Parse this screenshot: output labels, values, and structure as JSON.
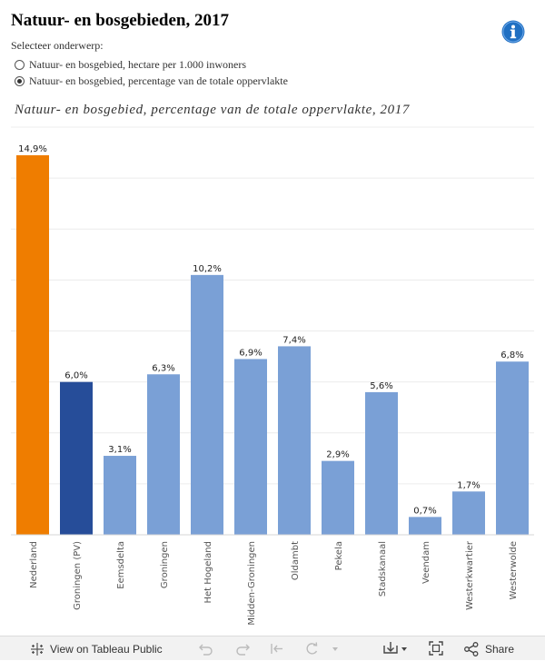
{
  "header": {
    "title": "Natuur- en bosgebieden, 2017",
    "info_icon": "info-icon"
  },
  "selector": {
    "label": "Selecteer onderwerp:",
    "options": [
      {
        "label": "Natuur- en bosgebied, hectare per 1.000 inwoners",
        "selected": false
      },
      {
        "label": "Natuur- en bosgebied, percentage van de totale oppervlakte",
        "selected": true
      }
    ]
  },
  "chart_data": {
    "type": "bar",
    "title": "Natuur- en bosgebied, percentage van de totale oppervlakte, 2017",
    "xlabel": "",
    "ylabel": "",
    "ylim": [
      0,
      16
    ],
    "grid": true,
    "categories": [
      "Nederland",
      "Groningen (PV)",
      "Eemsdelta",
      "Groningen",
      "Het Hogeland",
      "Midden-Groningen",
      "Oldambt",
      "Pekela",
      "Stadskanaal",
      "Veendam",
      "Westerkwartier",
      "Westerwolde"
    ],
    "values": [
      14.9,
      6.0,
      3.1,
      6.3,
      10.2,
      6.9,
      7.4,
      2.9,
      5.6,
      0.7,
      1.7,
      6.8
    ],
    "data_labels": [
      "14,9%",
      "6,0%",
      "3,1%",
      "6,3%",
      "10,2%",
      "6,9%",
      "7,4%",
      "2,9%",
      "5,6%",
      "0,7%",
      "1,7%",
      "6,8%"
    ],
    "bar_colors": [
      "#ef7d00",
      "#264d99",
      "#7aa0d6",
      "#7aa0d6",
      "#7aa0d6",
      "#7aa0d6",
      "#7aa0d6",
      "#7aa0d6",
      "#7aa0d6",
      "#7aa0d6",
      "#7aa0d6",
      "#7aa0d6"
    ]
  },
  "colors": {
    "highlight_orange": "#ef7d00",
    "province_blue": "#264d99",
    "municipality_blue": "#7aa0d6",
    "info_blue": "#1f6fc2"
  },
  "footer": {
    "view_label": "View on Tableau Public",
    "share_label": "Share",
    "icons": [
      "tableau-logo-icon",
      "undo-icon",
      "redo-icon",
      "revert-icon",
      "refresh-icon",
      "dropdown-arrow-icon",
      "download-icon",
      "fullscreen-icon",
      "share-icon"
    ]
  }
}
